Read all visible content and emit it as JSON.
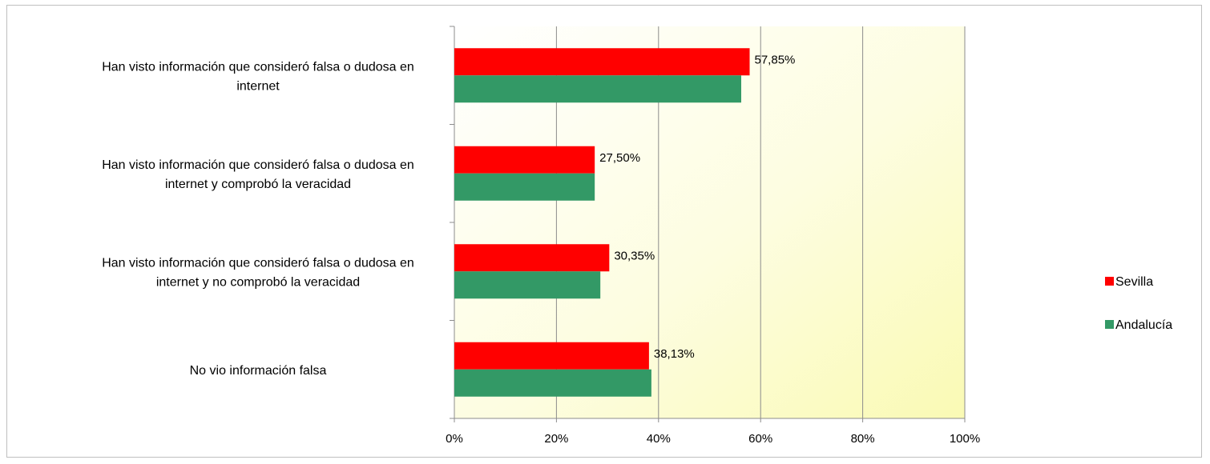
{
  "chart_data": {
    "type": "bar",
    "orientation": "horizontal",
    "categories": [
      [
        "Han visto información que consideró falsa o dudosa en",
        "internet"
      ],
      [
        "Han visto información que consideró falsa o dudosa en",
        "internet y comprobó la veracidad"
      ],
      [
        "Han visto información que consideró falsa o dudosa en",
        "internet y no comprobó la veracidad"
      ],
      [
        "No vio información falsa"
      ]
    ],
    "series": [
      {
        "name": "Sevilla",
        "color": "#ff0000",
        "values": [
          57.85,
          27.5,
          30.35,
          38.13
        ],
        "labels": [
          "57,85%",
          "27,50%",
          "30,35%",
          "38,13%"
        ]
      },
      {
        "name": "Andalucía",
        "color": "#339966",
        "values": [
          56.2,
          27.5,
          28.6,
          38.6
        ]
      }
    ],
    "xlim": [
      0,
      100
    ],
    "x_ticks": [
      "0%",
      "20%",
      "40%",
      "60%",
      "80%",
      "100%"
    ],
    "grid": true,
    "legend_position": "right",
    "plot_background": "gradient white to light yellow",
    "title": "",
    "xlabel": "",
    "ylabel": ""
  }
}
